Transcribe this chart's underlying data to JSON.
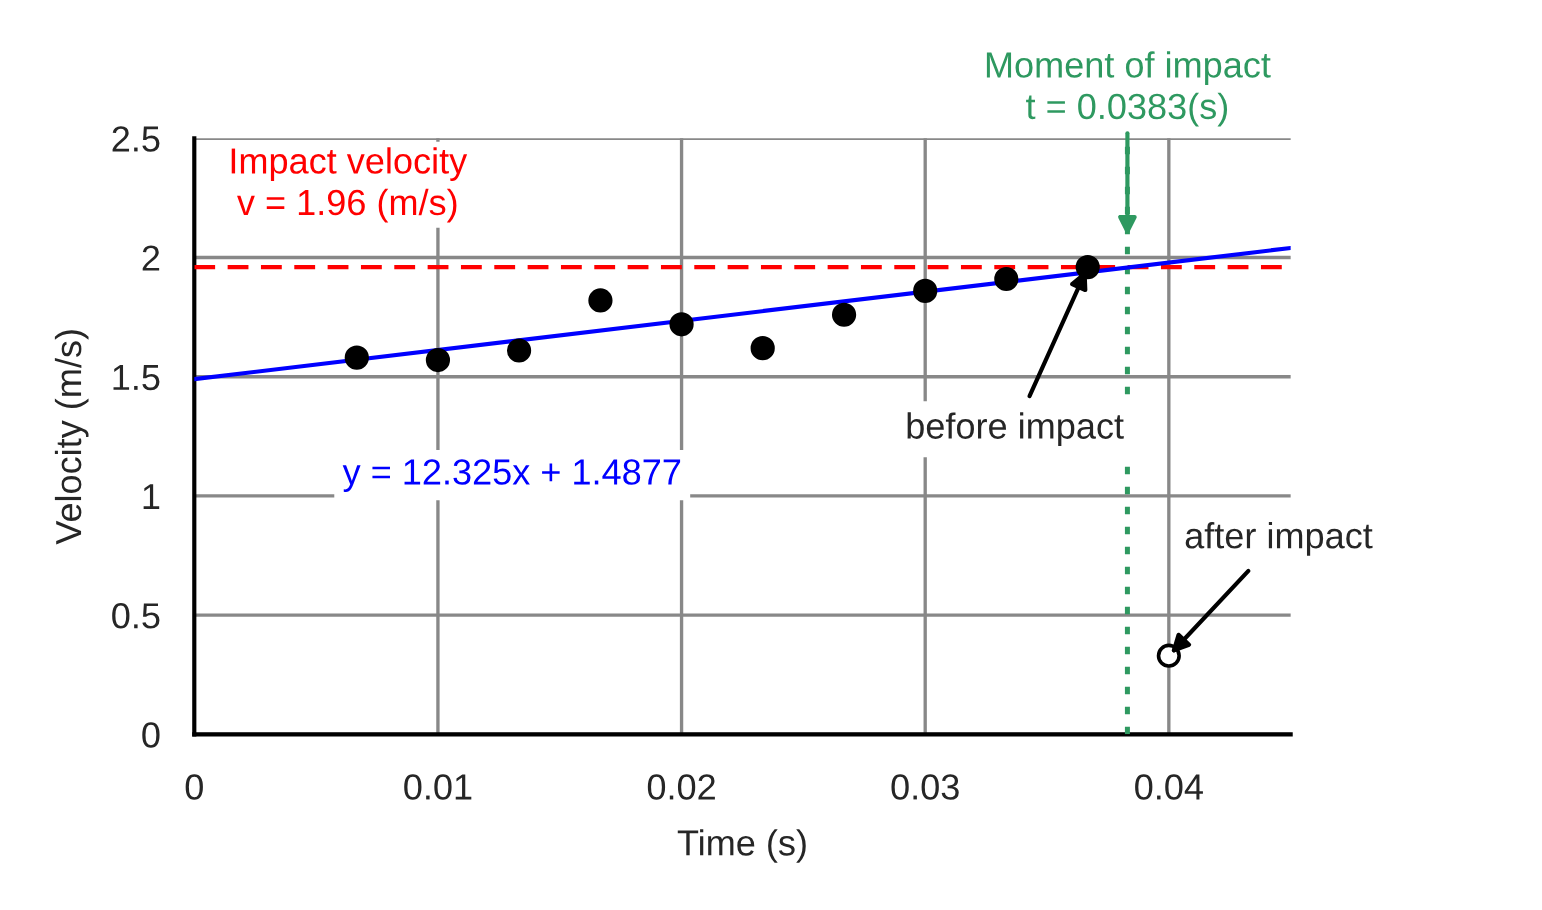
{
  "chart_data": {
    "type": "scatter",
    "xlabel": "Time (s)",
    "ylabel": "Velocity (m/s)",
    "xlim": [
      0,
      0.045
    ],
    "xticks": [
      0,
      0.01,
      0.02,
      0.03,
      0.04
    ],
    "ylim": [
      0,
      2.5
    ],
    "yticks": [
      0,
      0.5,
      1,
      1.5,
      2,
      2.5
    ],
    "grid": true,
    "marker": "circle",
    "series": [
      {
        "color": "#000000",
        "x": [
          0.00667,
          0.01,
          0.01333,
          0.01667,
          0.02,
          0.02333,
          0.02667,
          0.03,
          0.03333,
          0.03667
        ],
        "values": [
          1.58,
          1.57,
          1.61,
          1.82,
          1.72,
          1.62,
          1.76,
          1.86,
          1.91,
          1.96
        ]
      },
      {
        "color": "#ffffff",
        "x": [
          0.04
        ],
        "values": [
          0.33
        ]
      },
      {
        "type": "line",
        "marker": "none",
        "color": "#0000ff",
        "line_style": "solid",
        "x": [
          0,
          0.045
        ],
        "values": [
          1.49,
          2.04
        ]
      }
    ],
    "ref_lines": [
      {
        "axis": "y",
        "value": 1.96,
        "label": "Impact velocity\nv = 1.96 (m/s)",
        "color": "#ff0000",
        "line_style": "dashed"
      },
      {
        "axis": "x",
        "value": 0.0383,
        "label": "Moment of impact\nt = 0.0383(s)",
        "color": "#2e9960",
        "line_style": "dotted"
      }
    ],
    "annotations": [
      "y = 12.325x + 1.4877",
      {
        "text": "before impact",
        "x": 0.03667,
        "y": 1.96
      },
      {
        "text": "after impact",
        "x": 0.04,
        "y": 0.33
      }
    ]
  }
}
